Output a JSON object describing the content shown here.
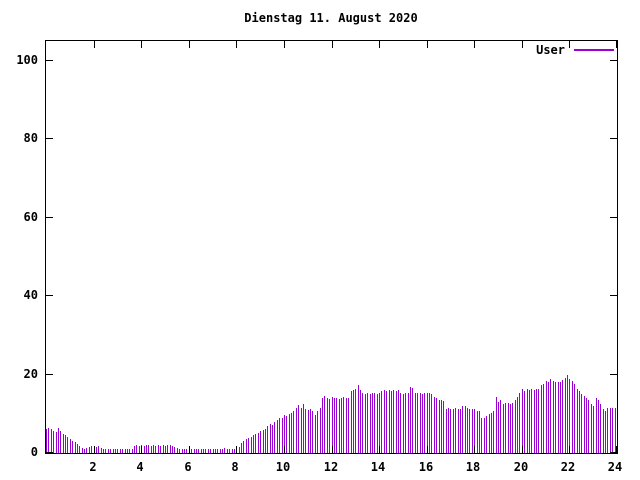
{
  "title": "Dienstag 11. August 2020",
  "legend": {
    "label": "User"
  },
  "colors": {
    "series": "#9b00d3",
    "axis": "#000000",
    "background": "#ffffff"
  },
  "chart_data": {
    "type": "bar",
    "style": "impulses",
    "title": "Dienstag 11. August 2020",
    "series_name": "User",
    "x_unit": "hour-of-day",
    "x_start": 0,
    "x_step": 0.1,
    "xlim": [
      0,
      24
    ],
    "ylim": [
      0,
      105
    ],
    "x_ticks": [
      2,
      4,
      6,
      8,
      10,
      12,
      14,
      16,
      18,
      20,
      22,
      24
    ],
    "y_ticks": [
      0,
      20,
      40,
      60,
      80,
      100
    ],
    "grid": false,
    "legend_position": "top-right-inside",
    "values": [
      6.0,
      6.3,
      6.1,
      5.6,
      5.3,
      6.3,
      5.5,
      4.8,
      4.5,
      4.0,
      3.6,
      3.1,
      2.8,
      2.3,
      1.9,
      1.2,
      1.0,
      1.4,
      1.6,
      1.7,
      1.7,
      1.6,
      1.7,
      1.2,
      1.0,
      1.0,
      1.0,
      1.0,
      0.9,
      1.0,
      1.0,
      0.9,
      1.0,
      1.0,
      0.9,
      1.0,
      1.0,
      1.9,
      2.0,
      1.9,
      2.0,
      1.9,
      2.0,
      2.0,
      1.9,
      2.0,
      1.9,
      2.0,
      1.9,
      2.0,
      1.9,
      2.0,
      2.0,
      1.9,
      1.5,
      1.2,
      1.0,
      0.9,
      1.0,
      1.0,
      0.9,
      1.0,
      0.9,
      1.0,
      1.0,
      0.9,
      1.0,
      1.0,
      0.9,
      1.0,
      0.9,
      1.0,
      1.0,
      0.9,
      1.0,
      1.3,
      1.0,
      0.9,
      1.0,
      1.0,
      0.9,
      1.5,
      2.5,
      3.0,
      3.6,
      3.8,
      4.0,
      4.5,
      4.8,
      5.2,
      5.5,
      5.8,
      6.2,
      7.0,
      7.3,
      7.2,
      7.8,
      8.3,
      8.8,
      9.0,
      9.8,
      9.5,
      10.0,
      10.3,
      10.6,
      11.4,
      12.2,
      11.5,
      12.4,
      11.3,
      11.0,
      11.2,
      10.6,
      9.8,
      10.6,
      11.5,
      13.9,
      14.4,
      14.0,
      13.8,
      14.2,
      13.9,
      14.1,
      13.8,
      14.0,
      14.2,
      13.9,
      14.1,
      15.9,
      16.1,
      16.2,
      17.3,
      16.0,
      15.2,
      15.1,
      15.3,
      15.1,
      15.2,
      15.3,
      15.1,
      15.2,
      15.8,
      16.0,
      15.9,
      16.1,
      15.9,
      16.0,
      15.8,
      16.0,
      15.2,
      15.1,
      15.3,
      15.4,
      16.8,
      16.5,
      15.3,
      15.2,
      15.3,
      15.1,
      15.2,
      15.3,
      15.2,
      15.1,
      14.3,
      14.1,
      13.6,
      13.5,
      13.2,
      11.2,
      11.4,
      11.3,
      11.2,
      11.4,
      11.3,
      11.2,
      12.0,
      11.9,
      11.4,
      11.2,
      11.3,
      11.2,
      10.7,
      10.6,
      8.9,
      9.0,
      9.5,
      9.9,
      10.3,
      10.6,
      14.3,
      13.0,
      13.4,
      12.6,
      12.8,
      12.7,
      12.6,
      12.8,
      13.6,
      14.2,
      15.4,
      16.2,
      15.8,
      16.4,
      16.1,
      16.3,
      16.0,
      16.2,
      16.4,
      17.3,
      17.5,
      18.3,
      18.0,
      18.8,
      18.4,
      18.1,
      18.0,
      18.2,
      18.6,
      19.2,
      19.8,
      18.9,
      18.4,
      17.5,
      16.3,
      15.8,
      15.0,
      14.4,
      14.0,
      13.4,
      12.4,
      12.1,
      13.9,
      13.4,
      12.5,
      11.2,
      10.8,
      11.4,
      11.5,
      11.4,
      11.5
    ]
  }
}
